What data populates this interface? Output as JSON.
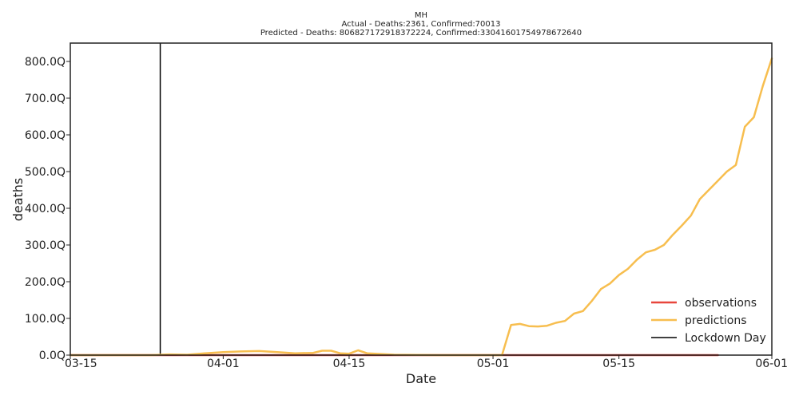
{
  "chart_data": {
    "type": "line",
    "title": "MH",
    "subtitle_actual": "Actual - Deaths:2361,  Confirmed:70013",
    "subtitle_predicted": "Predicted - Deaths:  806827172918372224, Confirmed:33041601754978672640",
    "xlabel": "Date",
    "ylabel": "deaths",
    "xlim": [
      "2020-03-15",
      "2020-06-01"
    ],
    "ylim": [
      0,
      850
    ],
    "x_ticks": [
      "2020-03-15",
      "2020-04-01",
      "2020-04-15",
      "2020-05-01",
      "2020-05-15",
      "2020-06-01"
    ],
    "x_tick_labels": [
      "03-15",
      "04-01",
      "04-15",
      "05-01",
      "05-15",
      "06-01"
    ],
    "y_ticks": [
      0,
      100,
      200,
      300,
      400,
      500,
      600,
      700,
      800
    ],
    "y_tick_labels": [
      "0.0Q",
      "100.0Q",
      "200.0Q",
      "300.0Q",
      "400.0Q",
      "500.0Q",
      "600.0Q",
      "700.0Q",
      "800.0Q"
    ],
    "grid": false,
    "legend_position": "bottom-right",
    "legend": [
      "observations",
      "predictions",
      "Lockdown Day"
    ],
    "lockdown_day": "2020-03-25",
    "colors": {
      "observations": "#e8463c",
      "predictions": "#f7be4f",
      "lockdown": "#000000"
    },
    "series": [
      {
        "name": "observations",
        "x": [
          "2020-03-15",
          "2020-03-20",
          "2020-03-25",
          "2020-04-01",
          "2020-04-10",
          "2020-04-20",
          "2020-05-01",
          "2020-05-15",
          "2020-05-26"
        ],
        "values": [
          0,
          0,
          0,
          0,
          0,
          0,
          0,
          0,
          0
        ]
      },
      {
        "name": "predictions",
        "x": [
          "2020-03-15",
          "2020-03-18",
          "2020-03-21",
          "2020-03-24",
          "2020-03-26",
          "2020-03-28",
          "2020-03-30",
          "2020-04-01",
          "2020-04-03",
          "2020-04-05",
          "2020-04-07",
          "2020-04-09",
          "2020-04-11",
          "2020-04-12",
          "2020-04-13",
          "2020-04-14",
          "2020-04-15",
          "2020-04-16",
          "2020-04-17",
          "2020-04-20",
          "2020-04-25",
          "2020-04-30",
          "2020-05-02",
          "2020-05-03",
          "2020-05-04",
          "2020-05-05",
          "2020-05-06",
          "2020-05-07",
          "2020-05-08",
          "2020-05-09",
          "2020-05-10",
          "2020-05-11",
          "2020-05-12",
          "2020-05-13",
          "2020-05-14",
          "2020-05-15",
          "2020-05-16",
          "2020-05-17",
          "2020-05-18",
          "2020-05-19",
          "2020-05-20",
          "2020-05-21",
          "2020-05-22",
          "2020-05-23",
          "2020-05-24",
          "2020-05-25",
          "2020-05-26",
          "2020-05-27",
          "2020-05-28",
          "2020-05-29",
          "2020-05-30",
          "2020-05-31",
          "2020-06-01"
        ],
        "values": [
          0,
          0,
          0,
          0,
          2,
          1,
          5,
          8,
          10,
          11,
          8,
          5,
          6,
          12,
          12,
          5,
          4,
          13,
          5,
          1,
          0,
          0,
          0,
          82,
          85,
          79,
          78,
          80,
          88,
          93,
          113,
          120,
          148,
          180,
          195,
          218,
          235,
          260,
          280,
          287,
          300,
          328,
          353,
          380,
          425,
          450,
          475,
          500,
          518,
          622,
          648,
          733,
          808
        ]
      }
    ]
  }
}
